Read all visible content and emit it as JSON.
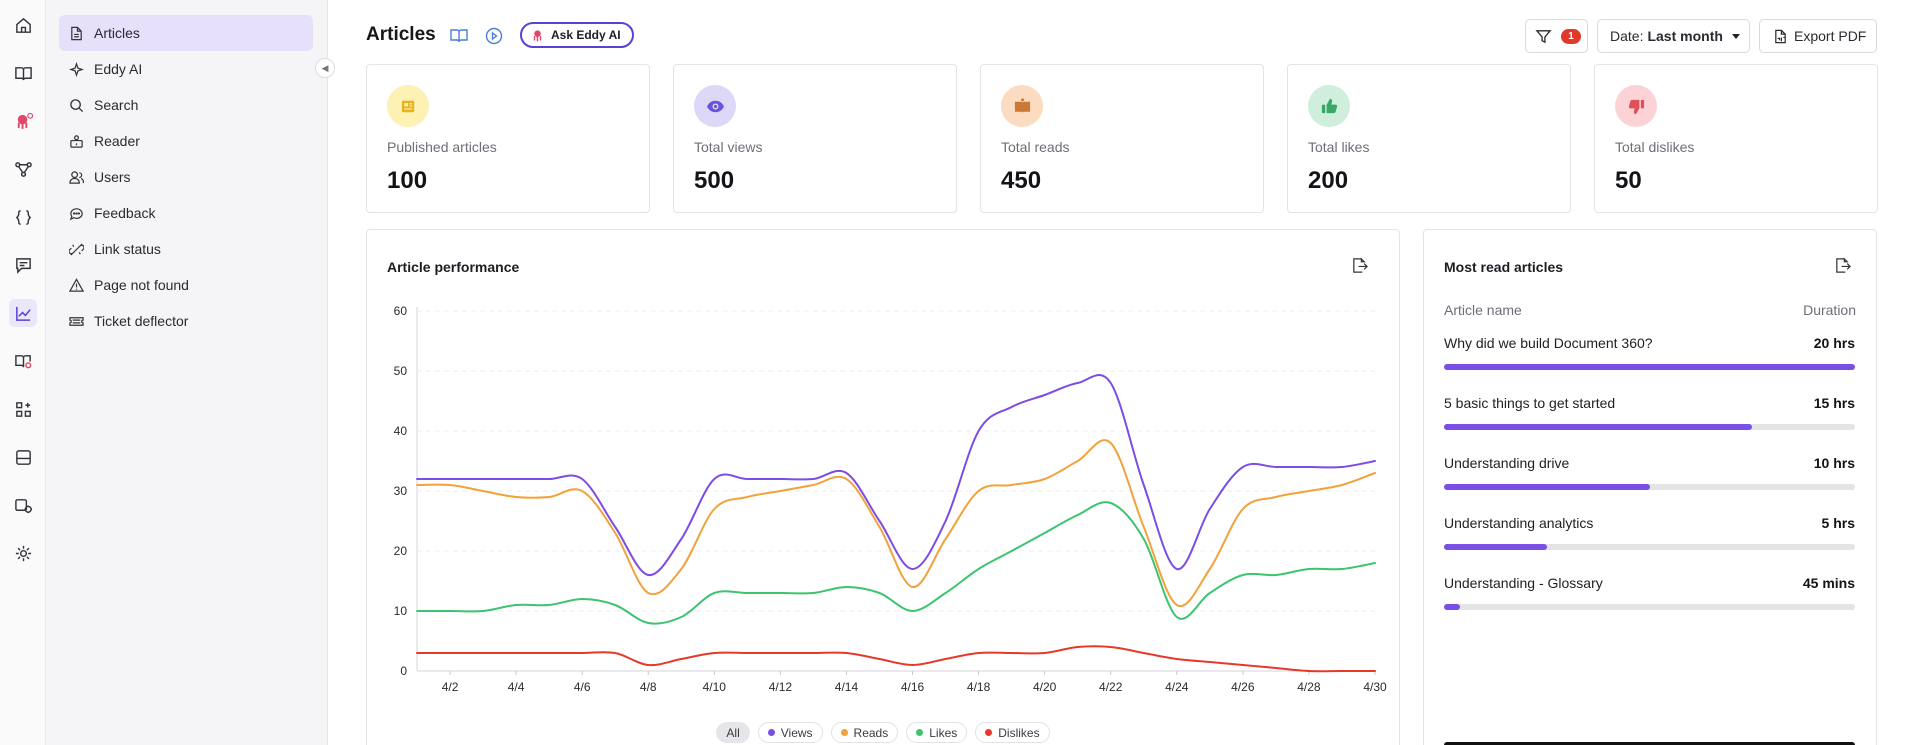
{
  "rail": {
    "icons": [
      "home-icon",
      "book-icon",
      "octopus-icon",
      "workflow-icon",
      "code-braces-icon",
      "chat-icon",
      "analytics-icon",
      "book-settings-icon",
      "apps-icon",
      "layout-icon",
      "site-settings-icon",
      "gear-icon"
    ]
  },
  "sidebar": {
    "items": [
      {
        "label": "Articles",
        "icon": "document-icon"
      },
      {
        "label": "Eddy AI",
        "icon": "sparkle-icon"
      },
      {
        "label": "Search",
        "icon": "search-icon"
      },
      {
        "label": "Reader",
        "icon": "reader-icon"
      },
      {
        "label": "Users",
        "icon": "users-icon"
      },
      {
        "label": "Feedback",
        "icon": "chat-bubble-icon"
      },
      {
        "label": "Link status",
        "icon": "broken-link-icon"
      },
      {
        "label": "Page not found",
        "icon": "warning-icon"
      },
      {
        "label": "Ticket deflector",
        "icon": "ticket-icon"
      }
    ]
  },
  "header": {
    "title": "Articles",
    "ask_eddy_label": "Ask Eddy AI",
    "filter_count": "1",
    "date_prefix": "Date:",
    "date_value": "Last month",
    "export_label": "Export PDF"
  },
  "stats": [
    {
      "label": "Published articles",
      "value": "100",
      "icon": "newspaper-icon",
      "bg": "#fdf1b3",
      "fg": "#e8b21c"
    },
    {
      "label": "Total views",
      "value": "500",
      "icon": "eye-icon",
      "bg": "#ddd8f8",
      "fg": "#6b52d9"
    },
    {
      "label": "Total reads",
      "value": "450",
      "icon": "open-book-icon",
      "bg": "#fcdcc0",
      "fg": "#c97a35"
    },
    {
      "label": "Total likes",
      "value": "200",
      "icon": "thumbs-up-icon",
      "bg": "#cfeedb",
      "fg": "#3aa865"
    },
    {
      "label": "Total dislikes",
      "value": "50",
      "icon": "thumbs-down-icon",
      "bg": "#fbd3d6",
      "fg": "#e0505b"
    }
  ],
  "performance": {
    "title": "Article performance",
    "legend": {
      "all": "All"
    }
  },
  "chart_data": {
    "type": "line",
    "title": "Article performance",
    "x": [
      "4/1",
      "4/2",
      "4/3",
      "4/4",
      "4/5",
      "4/6",
      "4/7",
      "4/8",
      "4/9",
      "4/10",
      "4/11",
      "4/12",
      "4/13",
      "4/14",
      "4/15",
      "4/16",
      "4/17",
      "4/18",
      "4/19",
      "4/20",
      "4/21",
      "4/22",
      "4/23",
      "4/24",
      "4/25",
      "4/26",
      "4/27",
      "4/28",
      "4/29",
      "4/30"
    ],
    "x_tick_labels": [
      "4/2",
      "4/4",
      "4/6",
      "4/8",
      "4/10",
      "4/12",
      "4/14",
      "4/16",
      "4/18",
      "4/20",
      "4/22",
      "4/24",
      "4/26",
      "4/28",
      "4/30"
    ],
    "y_ticks": [
      0,
      10,
      20,
      30,
      40,
      50,
      60
    ],
    "ylim": [
      0,
      60
    ],
    "grid": true,
    "legend_position": "bottom",
    "series": [
      {
        "name": "Views",
        "color": "#7c4ce6",
        "values": [
          32,
          32,
          32,
          32,
          32,
          32,
          24,
          16,
          22,
          32,
          32,
          32,
          32,
          33,
          25,
          17,
          25,
          40,
          44,
          46,
          48,
          48,
          31,
          17,
          27,
          34,
          34,
          34,
          34,
          35
        ]
      },
      {
        "name": "Reads",
        "color": "#f2a23a",
        "values": [
          31,
          31,
          30,
          29,
          29,
          30,
          23,
          13,
          17,
          27,
          29,
          30,
          31,
          32,
          24,
          14,
          22,
          30,
          31,
          32,
          35,
          38,
          24,
          11,
          17,
          27,
          29,
          30,
          31,
          33
        ]
      },
      {
        "name": "Likes",
        "color": "#3cc46e",
        "values": [
          10,
          10,
          10,
          11,
          11,
          12,
          11,
          8,
          9,
          13,
          13,
          13,
          13,
          14,
          13,
          10,
          13,
          17,
          20,
          23,
          26,
          28,
          22,
          9,
          13,
          16,
          16,
          17,
          17,
          18
        ]
      },
      {
        "name": "Dislikes",
        "color": "#e5392b",
        "values": [
          3,
          3,
          3,
          3,
          3,
          3,
          3,
          1,
          2,
          3,
          3,
          3,
          3,
          3,
          2,
          1,
          2,
          3,
          3,
          3,
          4,
          4,
          3,
          2,
          1.5,
          1,
          0.5,
          0,
          0,
          0
        ]
      }
    ]
  },
  "most_read": {
    "title": "Most read articles",
    "col_name": "Article name",
    "col_duration": "Duration",
    "rows": [
      {
        "name": "Why did we build Document 360?",
        "duration": "20 hrs",
        "fraction": 1.0
      },
      {
        "name": "5 basic things to get started",
        "duration": "15 hrs",
        "fraction": 0.75
      },
      {
        "name": "Understanding drive",
        "duration": "10 hrs",
        "fraction": 0.5
      },
      {
        "name": "Understanding analytics",
        "duration": "5 hrs",
        "fraction": 0.25
      },
      {
        "name": "Understanding - Glossary",
        "duration": "45 mins",
        "fraction": 0.04
      }
    ]
  }
}
